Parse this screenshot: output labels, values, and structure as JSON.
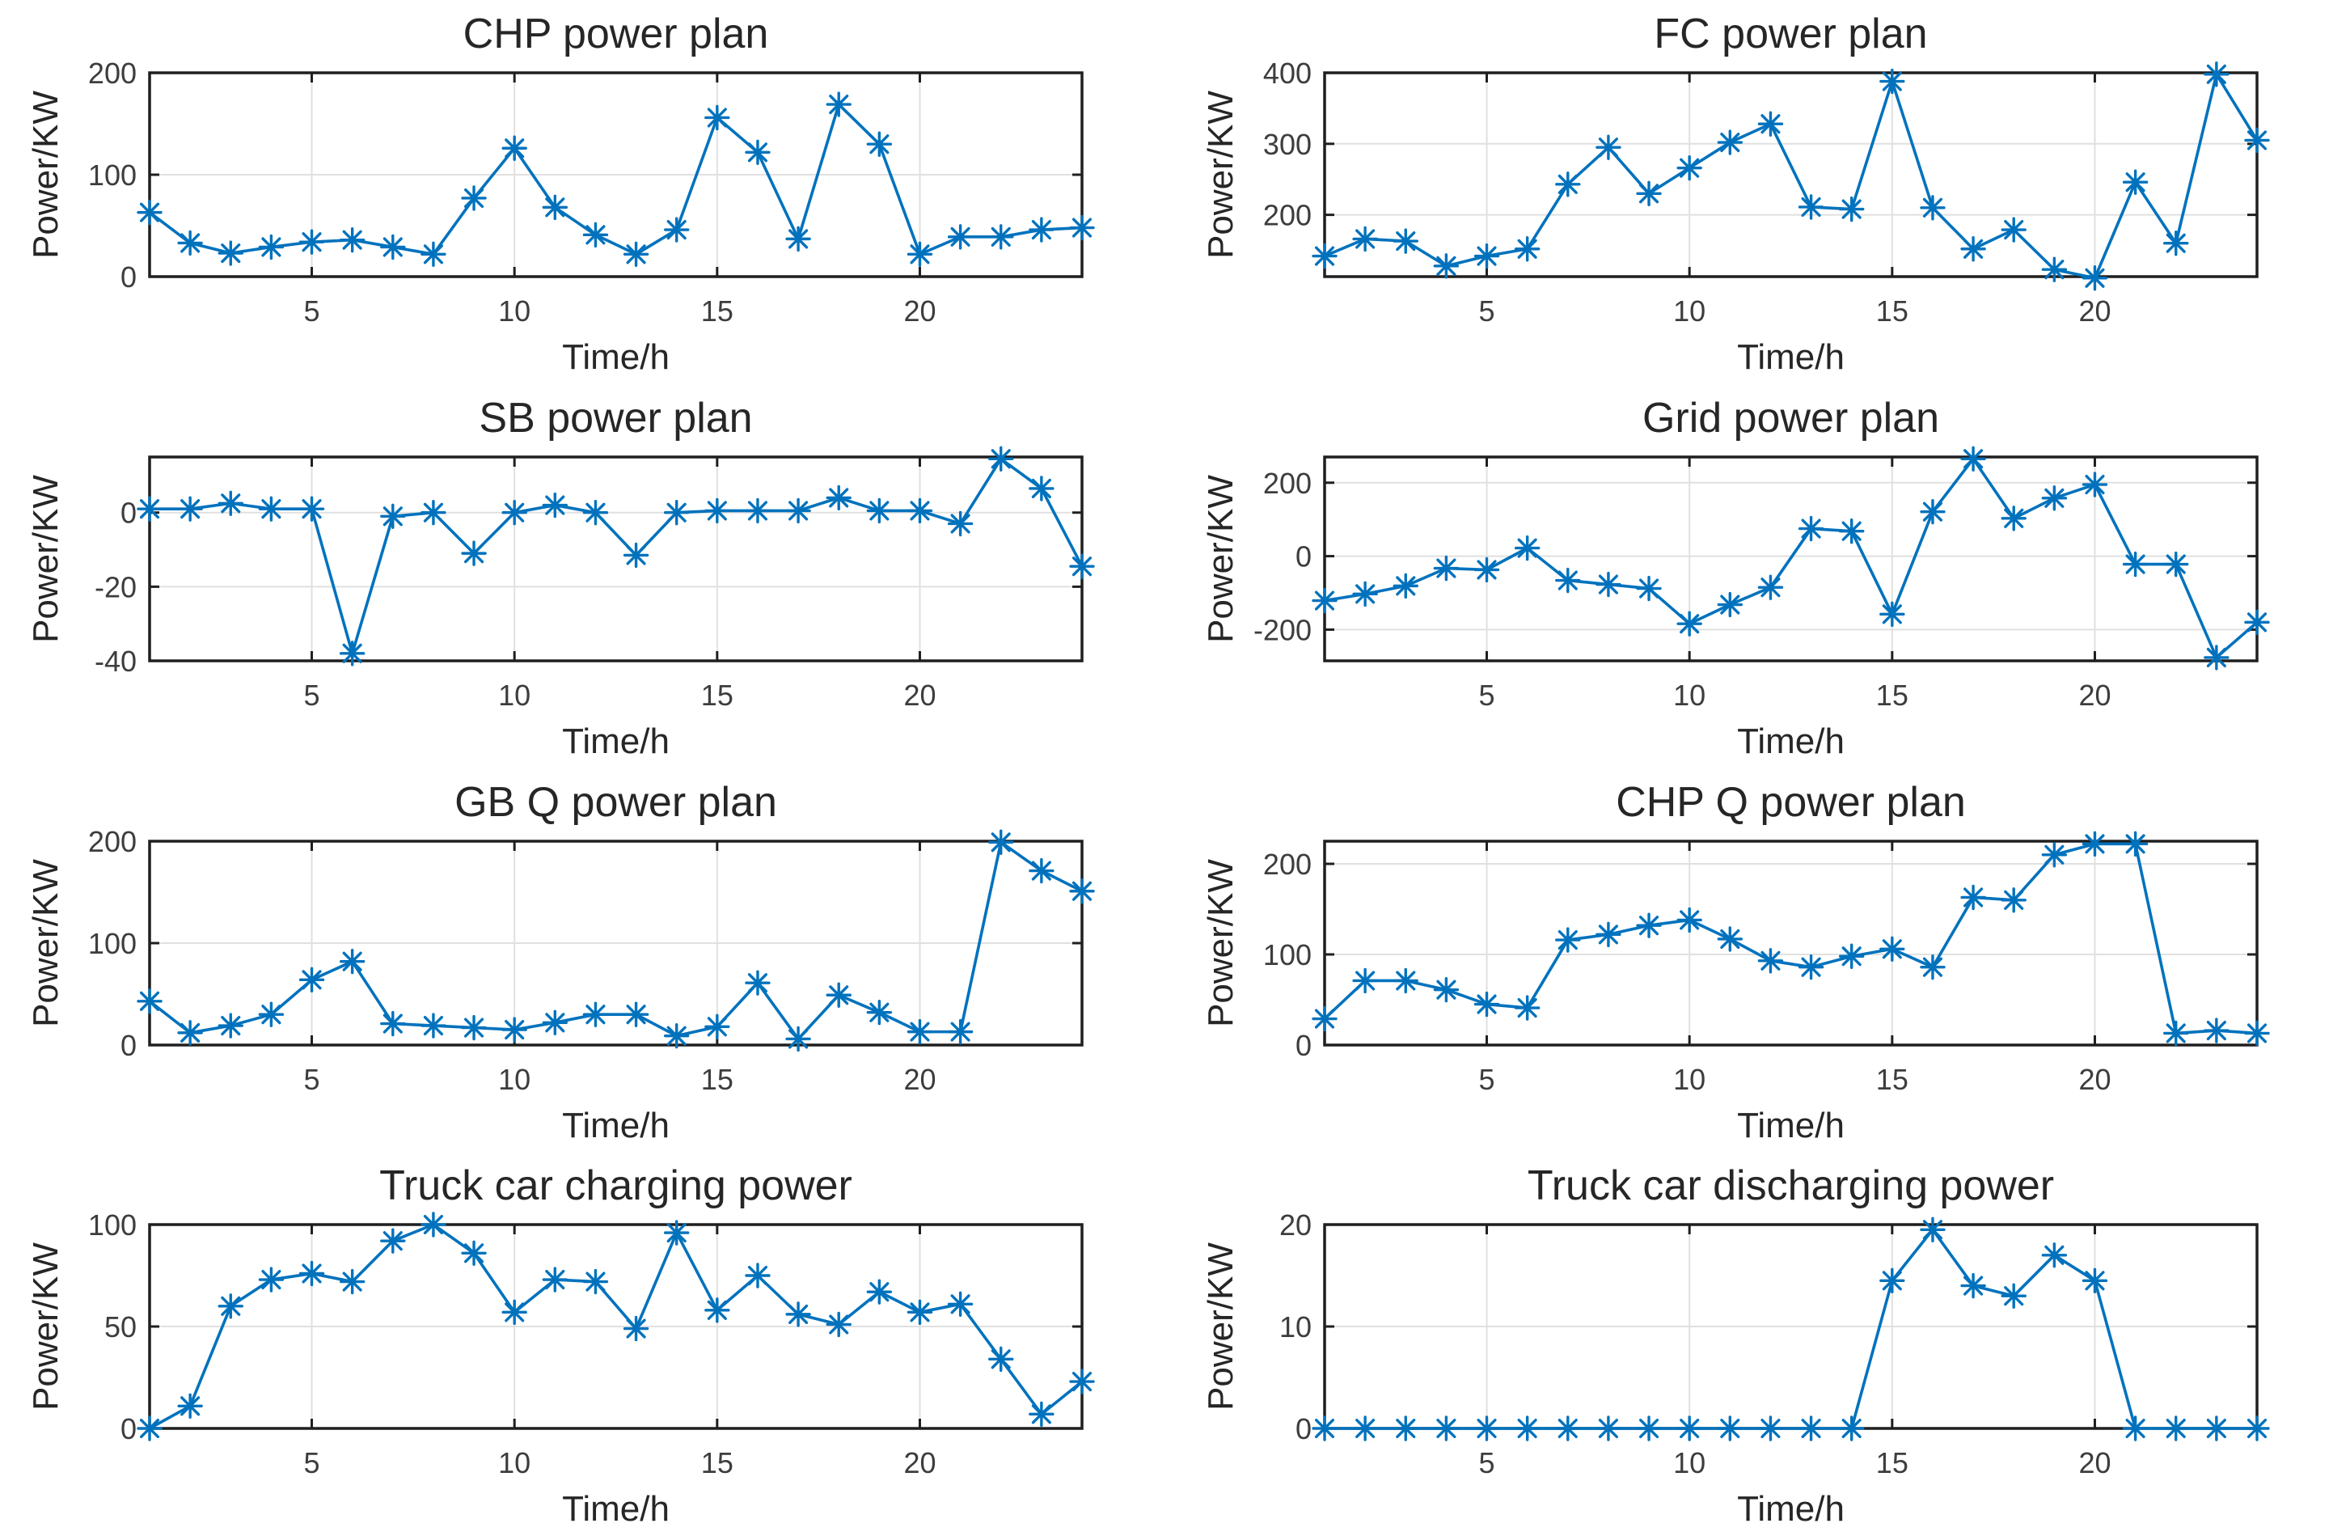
{
  "figure": {
    "background": "#ffffff",
    "series_color": "#0072BD",
    "grid_color": "#e0e0e0",
    "axis_color": "#1f1f1f",
    "title_color": "#262626",
    "tick_label_color": "#3d3d3d",
    "marker_style": "asterisk",
    "rows": 4,
    "columns": 2
  },
  "chart_data": [
    {
      "type": "line",
      "title": "CHP power plan",
      "xlabel": "Time/h",
      "ylabel": "Power/KW",
      "x": [
        1,
        2,
        3,
        4,
        5,
        6,
        7,
        8,
        9,
        10,
        11,
        12,
        13,
        14,
        15,
        16,
        17,
        18,
        19,
        20,
        21,
        22,
        23,
        24
      ],
      "values": [
        63,
        33,
        23,
        29,
        34,
        36,
        29,
        22,
        77,
        126,
        68,
        41,
        22,
        46,
        156,
        122,
        37,
        169,
        130,
        22,
        39,
        39,
        46,
        48
      ],
      "xlim": [
        1,
        24
      ],
      "ylim": [
        0,
        200
      ],
      "xticks": [
        5,
        10,
        15,
        20
      ],
      "yticks": [
        0,
        100,
        200
      ],
      "grid": true
    },
    {
      "type": "line",
      "title": "FC power plan",
      "xlabel": "Time/h",
      "ylabel": "Power/KW",
      "x": [
        1,
        2,
        3,
        4,
        5,
        6,
        7,
        8,
        9,
        10,
        11,
        12,
        13,
        14,
        15,
        16,
        17,
        18,
        19,
        20,
        21,
        22,
        23,
        24
      ],
      "values": [
        142,
        166,
        163,
        128,
        142,
        152,
        243,
        295,
        230,
        266,
        302,
        328,
        211,
        208,
        388,
        210,
        152,
        179,
        123,
        111,
        246,
        160,
        398,
        305
      ],
      "xlim": [
        1,
        24
      ],
      "ylim": [
        113,
        400
      ],
      "xticks": [
        5,
        10,
        15,
        20
      ],
      "yticks": [
        200,
        300,
        400
      ],
      "grid": true
    },
    {
      "type": "line",
      "title": "SB power plan",
      "xlabel": "Time/h",
      "ylabel": "Power/KW",
      "x": [
        1,
        2,
        3,
        4,
        5,
        6,
        7,
        8,
        9,
        10,
        11,
        12,
        13,
        14,
        15,
        16,
        17,
        18,
        19,
        20,
        21,
        22,
        23,
        24
      ],
      "values": [
        1,
        1,
        2.5,
        1,
        1,
        -38,
        -1,
        0,
        -11,
        0,
        2,
        0,
        -11.5,
        0,
        0.5,
        0.5,
        0.5,
        4,
        0.5,
        0.5,
        -3,
        14.5,
        6.5,
        -14.5
      ],
      "xlim": [
        1,
        24
      ],
      "ylim": [
        -40,
        15
      ],
      "xticks": [
        5,
        10,
        15,
        20
      ],
      "yticks": [
        -40,
        -20,
        0
      ],
      "grid": true
    },
    {
      "type": "line",
      "title": "Grid power plan",
      "xlabel": "Time/h",
      "ylabel": "Power/KW",
      "x": [
        1,
        2,
        3,
        4,
        5,
        6,
        7,
        8,
        9,
        10,
        11,
        12,
        13,
        14,
        15,
        16,
        17,
        18,
        19,
        20,
        21,
        22,
        23,
        24
      ],
      "values": [
        -121,
        -103,
        -81,
        -33,
        -37,
        22,
        -66,
        -77,
        -88,
        -184,
        -132,
        -85,
        75,
        68,
        -158,
        121,
        265,
        103,
        158,
        195,
        -22,
        -22,
        -276,
        -180
      ],
      "xlim": [
        1,
        24
      ],
      "ylim": [
        -285,
        270
      ],
      "xticks": [
        5,
        10,
        15,
        20
      ],
      "yticks": [
        -200,
        0,
        200
      ],
      "grid": true
    },
    {
      "type": "line",
      "title": "GB Q power plan",
      "xlabel": "Time/h",
      "ylabel": "Power/KW",
      "x": [
        1,
        2,
        3,
        4,
        5,
        6,
        7,
        8,
        9,
        10,
        11,
        12,
        13,
        14,
        15,
        16,
        17,
        18,
        19,
        20,
        21,
        22,
        23,
        24
      ],
      "values": [
        43,
        12,
        19,
        30,
        64,
        82,
        21,
        19,
        17,
        15,
        22,
        30,
        30,
        9,
        18,
        61,
        6,
        49,
        32,
        13,
        13,
        199,
        171,
        151
      ],
      "xlim": [
        1,
        24
      ],
      "ylim": [
        0,
        200
      ],
      "xticks": [
        5,
        10,
        15,
        20
      ],
      "yticks": [
        0,
        100,
        200
      ],
      "grid": true
    },
    {
      "type": "line",
      "title": "CHP Q power plan",
      "xlabel": "Time/h",
      "ylabel": "Power/KW",
      "x": [
        1,
        2,
        3,
        4,
        5,
        6,
        7,
        8,
        9,
        10,
        11,
        12,
        13,
        14,
        15,
        16,
        17,
        18,
        19,
        20,
        21,
        22,
        23,
        24
      ],
      "values": [
        29,
        71,
        71,
        61,
        45,
        41,
        116,
        122,
        132,
        138,
        117,
        93,
        86,
        98,
        106,
        86,
        163,
        160,
        210,
        222,
        222,
        13,
        16,
        13
      ],
      "xlim": [
        1,
        24
      ],
      "ylim": [
        0,
        225
      ],
      "xticks": [
        5,
        10,
        15,
        20
      ],
      "yticks": [
        0,
        100,
        200
      ],
      "grid": true
    },
    {
      "type": "line",
      "title": "Truck car charging power",
      "xlabel": "Time/h",
      "ylabel": "Power/KW",
      "x": [
        1,
        2,
        3,
        4,
        5,
        6,
        7,
        8,
        9,
        10,
        11,
        12,
        13,
        14,
        15,
        16,
        17,
        18,
        19,
        20,
        21,
        22,
        23,
        24
      ],
      "values": [
        0,
        11,
        60,
        73,
        76,
        72,
        92,
        100,
        86,
        57,
        73,
        72,
        49,
        96,
        58,
        75,
        56,
        51,
        67,
        57,
        61,
        34,
        7,
        23
      ],
      "xlim": [
        1,
        24
      ],
      "ylim": [
        0,
        100
      ],
      "xticks": [
        5,
        10,
        15,
        20
      ],
      "yticks": [
        0,
        50,
        100
      ],
      "grid": true
    },
    {
      "type": "line",
      "title": "Truck car discharging power",
      "xlabel": "Time/h",
      "ylabel": "Power/KW",
      "x": [
        1,
        2,
        3,
        4,
        5,
        6,
        7,
        8,
        9,
        10,
        11,
        12,
        13,
        14,
        15,
        16,
        17,
        18,
        19,
        20,
        21,
        22,
        23,
        24
      ],
      "values": [
        0,
        0,
        0,
        0,
        0,
        0,
        0,
        0,
        0,
        0,
        0,
        0,
        0,
        0,
        14.5,
        19.5,
        14,
        13,
        17,
        14.5,
        0,
        0,
        0,
        0
      ],
      "xlim": [
        1,
        24
      ],
      "ylim": [
        0,
        20
      ],
      "xticks": [
        5,
        10,
        15,
        20
      ],
      "yticks": [
        0,
        10,
        20
      ],
      "grid": true
    }
  ]
}
